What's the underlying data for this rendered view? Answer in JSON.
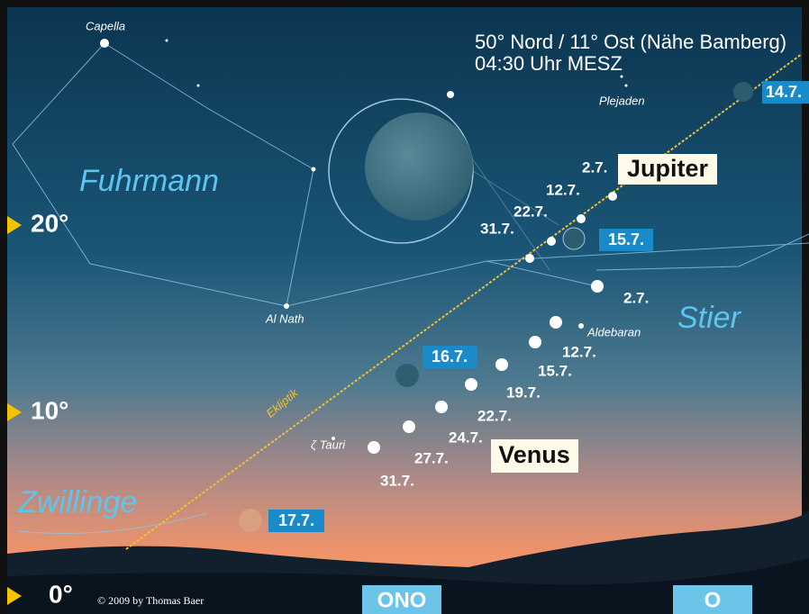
{
  "header": {
    "location": "50° Nord / 11° Ost (Nähe Bamberg)",
    "time": "04:30 Uhr MESZ"
  },
  "altitude_labels": [
    "20°",
    "10°",
    "0°"
  ],
  "constellations": [
    "Fuhrmann",
    "Stier",
    "Zwillinge"
  ],
  "stars": [
    "Capella",
    "Plejaden",
    "Al Nath",
    "Aldebaran",
    "ζ Tauri"
  ],
  "ecliptic_label": "Ekliptik",
  "jupiter": {
    "label": "Jupiter",
    "dates": [
      "2.7.",
      "12.7.",
      "22.7.",
      "31.7."
    ]
  },
  "venus": {
    "label": "Venus",
    "dates": [
      "2.7.",
      "12.7.",
      "15.7.",
      "19.7.",
      "22.7.",
      "24.7.",
      "27.7.",
      "31.7."
    ]
  },
  "moon_labels": [
    "14.7.",
    "15.7.",
    "16.7.",
    "17.7."
  ],
  "directions": [
    "ONO",
    "O"
  ],
  "credit": "© 2009 by Thomas Baer"
}
